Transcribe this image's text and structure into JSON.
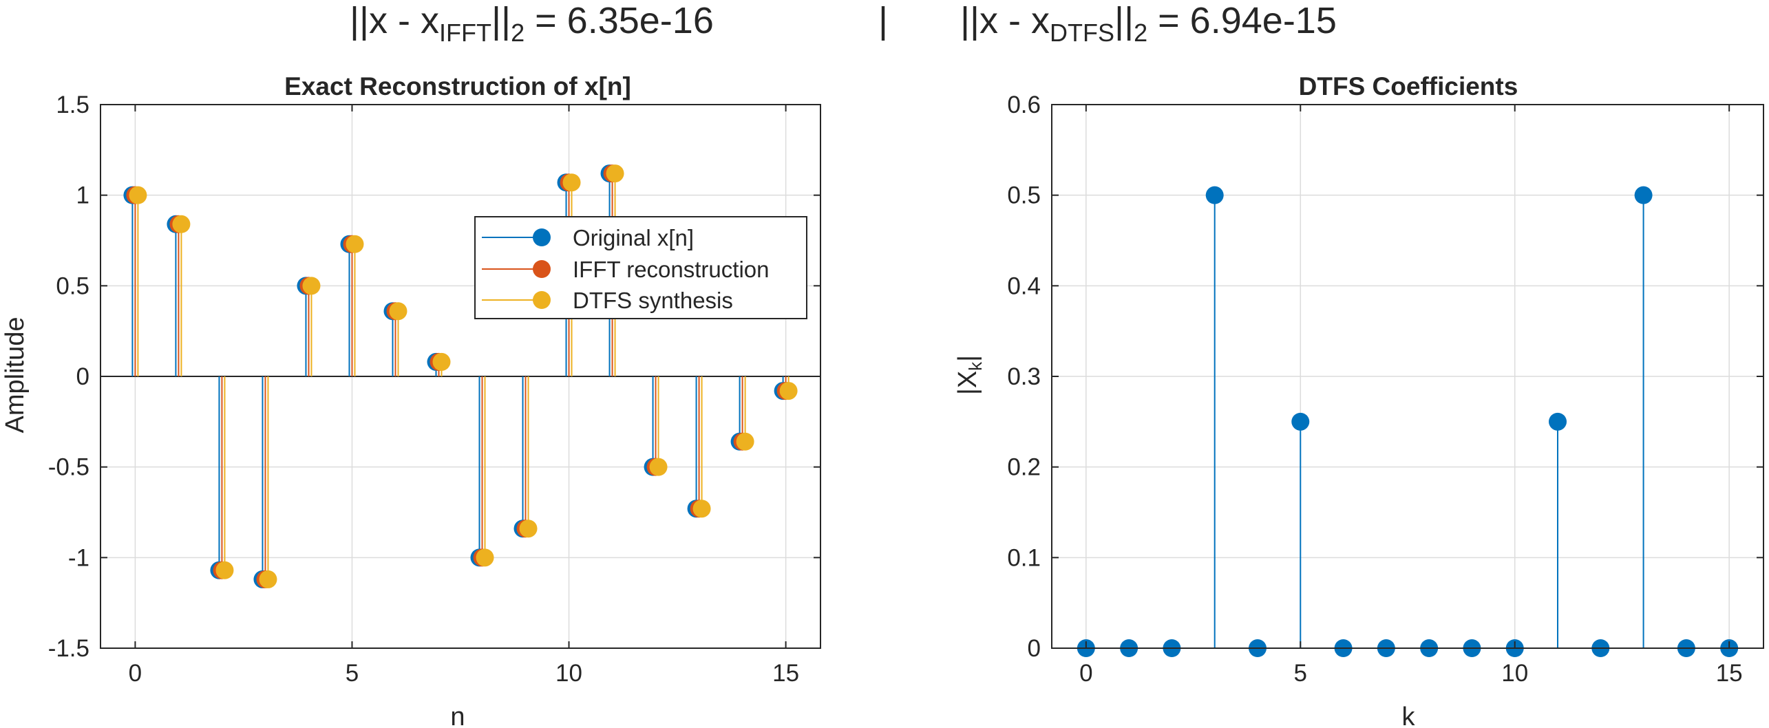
{
  "figure_title": {
    "left_prefix": "||x  -  x",
    "left_sub": "IFFT",
    "left_suffix": "||",
    "left_norm": "2",
    "left_value": "  =  6.35e-16",
    "separator": "|",
    "right_prefix": "||x  -  x",
    "right_sub": "DTFS",
    "right_suffix": "||",
    "right_norm": "2",
    "right_value": "  =  6.94e-15"
  },
  "colors": {
    "original": "#0072BD",
    "ifft": "#D95319",
    "dtfs": "#EDB120",
    "grid": "#dcdcdc",
    "axis": "#262626"
  },
  "chart_data": [
    {
      "type": "stem",
      "title": "Exact Reconstruction of x[n]",
      "xlabel": "n",
      "ylabel": "Amplitude",
      "xlim": [
        -0.8,
        15.8
      ],
      "ylim": [
        -1.5,
        1.5
      ],
      "xticks": [
        0,
        5,
        10,
        15
      ],
      "xtick_labels": [
        "0",
        "5",
        "10",
        "15"
      ],
      "yticks": [
        -1.5,
        -1,
        -0.5,
        0,
        0.5,
        1,
        1.5
      ],
      "ytick_labels": [
        "-1.5",
        "-1",
        "-0.5",
        "0",
        "0.5",
        "1",
        "1.5"
      ],
      "grid": true,
      "legend_location": "top-right",
      "x": [
        0,
        1,
        2,
        3,
        4,
        5,
        6,
        7,
        8,
        9,
        10,
        11,
        12,
        13,
        14,
        15
      ],
      "series": [
        {
          "name": "Original x[n]",
          "color_key": "original",
          "values": [
            1.0,
            0.84,
            -1.07,
            -1.12,
            0.5,
            0.73,
            0.36,
            0.08,
            -1.0,
            -0.84,
            1.07,
            1.12,
            -0.5,
            -0.73,
            -0.36,
            -0.08
          ]
        },
        {
          "name": "IFFT reconstruction",
          "color_key": "ifft",
          "values": [
            1.0,
            0.84,
            -1.07,
            -1.12,
            0.5,
            0.73,
            0.36,
            0.08,
            -1.0,
            -0.84,
            1.07,
            1.12,
            -0.5,
            -0.73,
            -0.36,
            -0.08
          ]
        },
        {
          "name": "DTFS synthesis",
          "color_key": "dtfs",
          "values": [
            1.0,
            0.84,
            -1.07,
            -1.12,
            0.5,
            0.73,
            0.36,
            0.08,
            -1.0,
            -0.84,
            1.07,
            1.12,
            -0.5,
            -0.73,
            -0.36,
            -0.08
          ]
        }
      ]
    },
    {
      "type": "stem",
      "title": "DTFS Coefficients",
      "xlabel": "k",
      "ylabel_base": "|X",
      "ylabel_sub": "k",
      "ylabel_end": "|",
      "xlim": [
        -0.8,
        15.8
      ],
      "ylim": [
        0,
        0.6
      ],
      "xticks": [
        0,
        5,
        10,
        15
      ],
      "xtick_labels": [
        "0",
        "5",
        "10",
        "15"
      ],
      "yticks": [
        0,
        0.1,
        0.2,
        0.3,
        0.4,
        0.5,
        0.6
      ],
      "ytick_labels": [
        "0",
        "0.1",
        "0.2",
        "0.3",
        "0.4",
        "0.5",
        "0.6"
      ],
      "grid": true,
      "x": [
        0,
        1,
        2,
        3,
        4,
        5,
        6,
        7,
        8,
        9,
        10,
        11,
        12,
        13,
        14,
        15
      ],
      "series": [
        {
          "color_key": "original",
          "values": [
            0,
            0,
            0,
            0.5,
            0,
            0.25,
            0,
            0,
            0,
            0,
            0,
            0.25,
            0,
            0.5,
            0,
            0
          ]
        }
      ]
    }
  ]
}
